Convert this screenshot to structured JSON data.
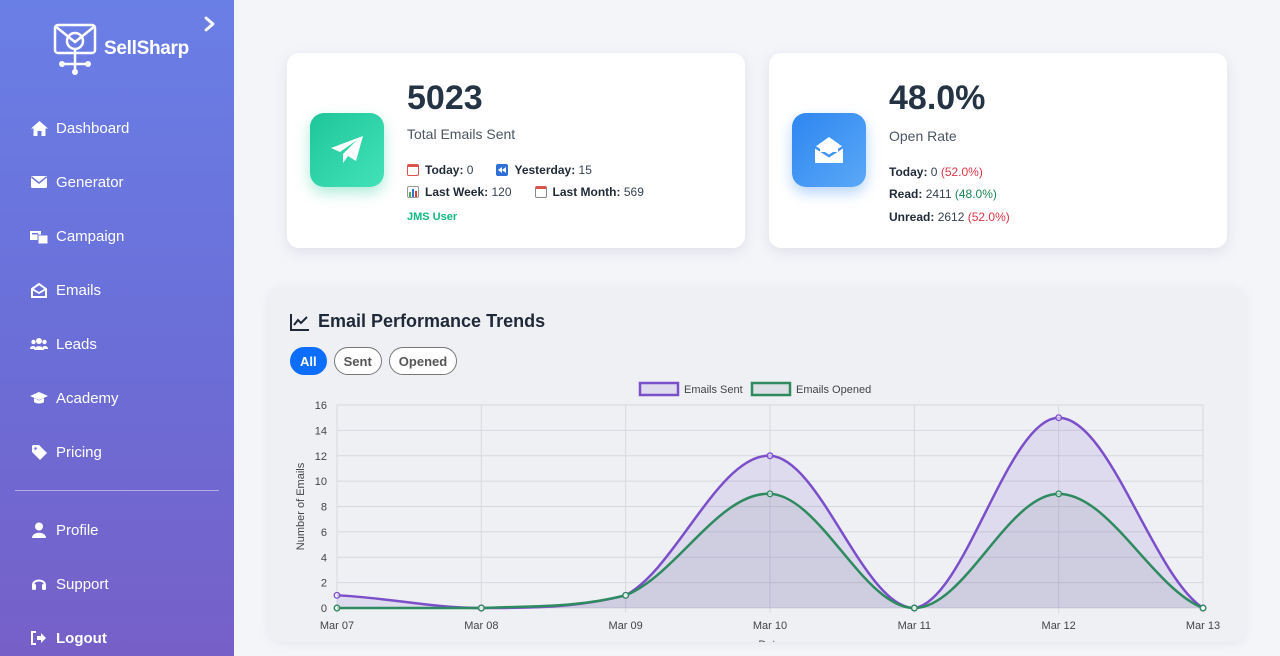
{
  "app": {
    "brand": "SellSharp"
  },
  "sidebar": {
    "items": [
      {
        "label": "Dashboard",
        "icon": "home-icon"
      },
      {
        "label": "Generator",
        "icon": "envelope-icon"
      },
      {
        "label": "Campaign",
        "icon": "campaign-icon"
      },
      {
        "label": "Emails",
        "icon": "envelope-open-icon"
      },
      {
        "label": "Leads",
        "icon": "users-icon"
      },
      {
        "label": "Academy",
        "icon": "graduation-cap-icon"
      },
      {
        "label": "Pricing",
        "icon": "tag-icon"
      }
    ],
    "bottom": [
      {
        "label": "Profile",
        "icon": "user-icon"
      },
      {
        "label": "Support",
        "icon": "headset-icon"
      },
      {
        "label": "Logout",
        "icon": "logout-icon"
      }
    ]
  },
  "sent_card": {
    "value": "5023",
    "label": "Total Emails Sent",
    "today_label": "Today:",
    "today_value": "0",
    "yesterday_label": "Yesterday:",
    "yesterday_value": "15",
    "last_week_label": "Last Week:",
    "last_week_value": "120",
    "last_month_label": "Last Month:",
    "last_month_value": "569",
    "user": "JMS User"
  },
  "open_card": {
    "value": "48.0%",
    "label": "Open Rate",
    "today_label": "Today:",
    "today_value": "0",
    "today_pct": "(52.0%)",
    "read_label": "Read:",
    "read_value": "2411",
    "read_pct": "(48.0%)",
    "unread_label": "Unread:",
    "unread_value": "2612",
    "unread_pct": "(52.0%)"
  },
  "chart_panel": {
    "title": "Email Performance Trends",
    "filters": [
      "All",
      "Sent",
      "Opened"
    ],
    "active_filter": "All"
  },
  "colors": {
    "sent": "#7b4fc9",
    "opened": "#2e8a5f",
    "primary": "#0d6efd"
  },
  "chart_data": {
    "type": "line",
    "categories": [
      "Mar 07",
      "Mar 08",
      "Mar 09",
      "Mar 10",
      "Mar 11",
      "Mar 12",
      "Mar 13"
    ],
    "series": [
      {
        "name": "Emails Sent",
        "values": [
          1,
          0,
          1,
          12,
          0,
          15,
          0
        ]
      },
      {
        "name": "Emails Opened",
        "values": [
          0,
          0,
          1,
          9,
          0,
          9,
          0
        ]
      }
    ],
    "ylabel": "Number of Emails",
    "xlabel": "Date",
    "ylim": [
      0,
      16
    ],
    "yticks": [
      "0",
      "2",
      "4",
      "6",
      "8",
      "10",
      "12",
      "14",
      "16"
    ],
    "legend": "top-center",
    "grid": true
  }
}
